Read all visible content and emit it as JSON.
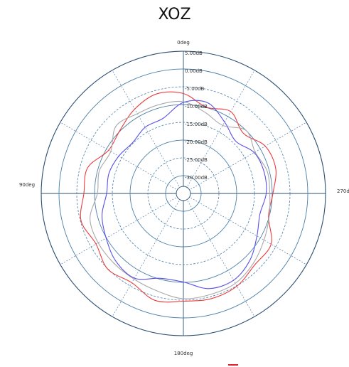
{
  "title": "XOZ",
  "chart_data": {
    "type": "polar",
    "title": "XOZ",
    "radial_unit": "dB",
    "radial_range_db": [
      -35,
      5
    ],
    "radial_ticks": [
      {
        "label": "5.00dB",
        "value": 5
      },
      {
        "label": "0.00dB",
        "value": 0
      },
      {
        "label": "-5.00dB",
        "value": -5
      },
      {
        "label": "-10.00dB",
        "value": -10
      },
      {
        "label": "-15.00dB",
        "value": -15
      },
      {
        "label": "-20.00dB",
        "value": -20
      },
      {
        "label": "-25.00dB",
        "value": -25
      },
      {
        "label": "-30.00dB",
        "value": -30
      }
    ],
    "angle_labels": [
      {
        "label": "0deg",
        "angle": 0
      },
      {
        "label": "90deg",
        "angle": 90
      },
      {
        "label": "180deg",
        "angle": 180
      },
      {
        "label": "270deg",
        "angle": 270
      }
    ],
    "angle_direction": "counterclockwise, 0deg at top",
    "angle_gridline_step_deg": 30,
    "grid": true,
    "colors": {
      "ring_solid": "#4a7fa7",
      "ring_dashed": "#4a7fa7",
      "spoke_dotted": "#6f93b8",
      "axis": "#2b4f73",
      "legend_red": "#e0202a"
    },
    "series": [
      {
        "color": "#ea3c3c",
        "angles_deg": [
          0,
          15,
          30,
          45,
          60,
          75,
          90,
          105,
          120,
          135,
          150,
          165,
          180,
          195,
          210,
          225,
          240,
          255,
          270,
          285,
          300,
          315,
          330,
          345
        ],
        "gain_db": [
          -6.9,
          -6.0,
          -7.6,
          -9.8,
          -10.7,
          -7.1,
          -7.0,
          -5.2,
          -6.6,
          -4.9,
          -6.0,
          -3.9,
          -4.7,
          -4.4,
          -4.9,
          -6.6,
          -6.5,
          -10.2,
          -9.8,
          -8.1,
          -8.4,
          -11.1,
          -8.4,
          -9.9
        ]
      },
      {
        "color": "#a9a9a9",
        "angles_deg": [
          0,
          15,
          30,
          45,
          60,
          75,
          90,
          105,
          120,
          135,
          150,
          165,
          180,
          195,
          210,
          225,
          240,
          255,
          270,
          285,
          300,
          315,
          330,
          345
        ],
        "gain_db": [
          -9.2,
          -9.1,
          -9.1,
          -8.2,
          -11.4,
          -10.5,
          -10.8,
          -7.8,
          -7.3,
          -7.3,
          -7.2,
          -6.6,
          -5.4,
          -5.6,
          -5.8,
          -7.2,
          -8.8,
          -10.0,
          -10.7,
          -10.6,
          -11.7,
          -10.0,
          -12.9,
          -11.4
        ]
      },
      {
        "color": "#5a4fe6",
        "angles_deg": [
          0,
          15,
          30,
          45,
          60,
          75,
          90,
          105,
          120,
          135,
          150,
          165,
          180,
          195,
          210,
          225,
          240,
          255,
          270,
          285,
          300,
          315,
          330,
          345
        ],
        "gain_db": [
          -9.4,
          -13.1,
          -13.5,
          -14.8,
          -14.0,
          -13.3,
          -13.4,
          -11.3,
          -9.9,
          -8.1,
          -7.5,
          -10.3,
          -10.1,
          -7.3,
          -6.8,
          -8.5,
          -11.1,
          -12.7,
          -11.7,
          -11.5,
          -12.0,
          -14.2,
          -11.8,
          -8.6
        ]
      }
    ]
  }
}
